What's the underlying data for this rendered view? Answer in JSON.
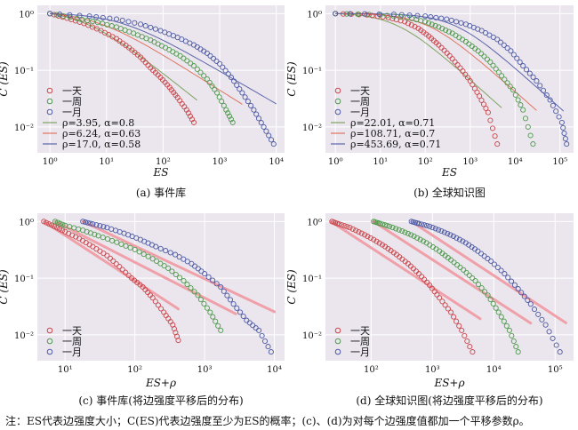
{
  "figure_note": "注：ES代表边强度大小；C(ES)代表边强度至少为ES的概率；(c)、(d)为对每个边强度值都加一个平移参数ρ。",
  "colors": {
    "day": "#c9474b",
    "week": "#4f9a4c",
    "month": "#4c5aa4",
    "fit_day": "#7da460",
    "fit_week": "#e0735f",
    "fit_month": "#5a65a8",
    "shift_line": "#f0a0a8",
    "panel_bg": "#ebe6ee"
  },
  "chart_data": [
    {
      "id": "a",
      "type": "scatter",
      "caption": "(a) 事件库",
      "xlabel": "ES",
      "ylabel": "C (ES)",
      "xscale": "log",
      "yscale": "log",
      "xlim": [
        0.6,
        14000
      ],
      "ylim": [
        0.0035,
        1.4
      ],
      "xticks": [
        1,
        10,
        100,
        1000,
        10000
      ],
      "xtick_labels": [
        "10⁰",
        "10¹",
        "10²",
        "10³",
        "10⁴"
      ],
      "yticks": [
        0.01,
        0.1,
        1
      ],
      "ytick_labels": [
        "10⁻²",
        "10⁻¹",
        "10⁰"
      ],
      "legend_position": "lower-left",
      "series": [
        {
          "name": "一天",
          "color_key": "day",
          "points": [
            [
              1,
              1
            ],
            [
              2,
              0.83
            ],
            [
              4,
              0.67
            ],
            [
              8,
              0.5
            ],
            [
              15,
              0.36
            ],
            [
              25,
              0.25
            ],
            [
              40,
              0.17
            ],
            [
              60,
              0.11
            ],
            [
              90,
              0.075
            ],
            [
              130,
              0.05
            ],
            [
              180,
              0.033
            ],
            [
              260,
              0.02
            ],
            [
              350,
              0.012
            ]
          ]
        },
        {
          "name": "一周",
          "color_key": "week",
          "points": [
            [
              1,
              1
            ],
            [
              3,
              0.82
            ],
            [
              7,
              0.7
            ],
            [
              15,
              0.58
            ],
            [
              30,
              0.45
            ],
            [
              60,
              0.34
            ],
            [
              110,
              0.25
            ],
            [
              200,
              0.18
            ],
            [
              350,
              0.12
            ],
            [
              600,
              0.07
            ],
            [
              900,
              0.04
            ],
            [
              1300,
              0.02
            ],
            [
              1700,
              0.012
            ]
          ]
        },
        {
          "name": "一月",
          "color_key": "month",
          "points": [
            [
              1,
              1
            ],
            [
              5,
              0.9
            ],
            [
              15,
              0.8
            ],
            [
              40,
              0.65
            ],
            [
              90,
              0.5
            ],
            [
              180,
              0.38
            ],
            [
              350,
              0.28
            ],
            [
              600,
              0.2
            ],
            [
              1000,
              0.13
            ],
            [
              1600,
              0.075
            ],
            [
              2500,
              0.04
            ],
            [
              4000,
              0.02
            ],
            [
              6000,
              0.01
            ],
            [
              9000,
              0.005
            ]
          ]
        }
      ],
      "fits": [
        {
          "name": "ρ=3.95, α=0.8",
          "color_key": "fit_day",
          "rho": 3.95,
          "alpha": 0.8,
          "x_end": 400
        },
        {
          "name": "ρ=6.24, α=0.63",
          "color_key": "fit_week",
          "rho": 6.24,
          "alpha": 0.63,
          "x_end": 2500
        },
        {
          "name": "ρ=17.0, α=0.58",
          "color_key": "fit_month",
          "rho": 17.0,
          "alpha": 0.58,
          "x_end": 10000
        }
      ]
    },
    {
      "id": "b",
      "type": "scatter",
      "caption": "(b) 全球知识图",
      "xlabel": "ES",
      "ylabel": "C (ES)",
      "xscale": "log",
      "yscale": "log",
      "xlim": [
        0.6,
        200000
      ],
      "ylim": [
        0.0035,
        1.4
      ],
      "xticks": [
        1,
        10,
        100,
        1000,
        10000,
        100000
      ],
      "xtick_labels": [
        "10⁰",
        "10¹",
        "10²",
        "10³",
        "10⁴",
        "10⁵"
      ],
      "yticks": [
        0.01,
        0.1,
        1
      ],
      "ytick_labels": [
        "10⁻²",
        "10⁻¹",
        "10⁰"
      ],
      "legend_position": "lower-left",
      "series": [
        {
          "name": "一天",
          "color_key": "day",
          "points": [
            [
              1,
              1
            ],
            [
              5,
              0.95
            ],
            [
              15,
              0.85
            ],
            [
              35,
              0.72
            ],
            [
              70,
              0.55
            ],
            [
              120,
              0.4
            ],
            [
              200,
              0.28
            ],
            [
              350,
              0.18
            ],
            [
              600,
              0.11
            ],
            [
              1000,
              0.065
            ],
            [
              1600,
              0.035
            ],
            [
              2500,
              0.018
            ],
            [
              4000,
              0.005
            ]
          ]
        },
        {
          "name": "一周",
          "color_key": "week",
          "points": [
            [
              1,
              1
            ],
            [
              10,
              0.95
            ],
            [
              40,
              0.85
            ],
            [
              100,
              0.72
            ],
            [
              200,
              0.58
            ],
            [
              400,
              0.45
            ],
            [
              800,
              0.32
            ],
            [
              1500,
              0.22
            ],
            [
              2800,
              0.14
            ],
            [
              5000,
              0.08
            ],
            [
              9000,
              0.045
            ],
            [
              15000,
              0.02
            ],
            [
              25000,
              0.005
            ]
          ]
        },
        {
          "name": "一月",
          "color_key": "month",
          "points": [
            [
              1,
              1
            ],
            [
              20,
              0.97
            ],
            [
              100,
              0.9
            ],
            [
              300,
              0.8
            ],
            [
              800,
              0.65
            ],
            [
              1800,
              0.5
            ],
            [
              4000,
              0.35
            ],
            [
              8000,
              0.22
            ],
            [
              15000,
              0.12
            ],
            [
              30000,
              0.065
            ],
            [
              60000,
              0.03
            ],
            [
              110000,
              0.012
            ],
            [
              140000,
              0.005
            ]
          ]
        }
      ],
      "fits": [
        {
          "name": "ρ=22.01, α=0.71",
          "color_key": "fit_day",
          "rho": 22.01,
          "alpha": 0.71,
          "x_end": 5000
        },
        {
          "name": "ρ=108.71, α=0.7",
          "color_key": "fit_week",
          "rho": 108.71,
          "alpha": 0.7,
          "x_end": 30000
        },
        {
          "name": "ρ=453.69, α=0.71",
          "color_key": "fit_month",
          "rho": 453.69,
          "alpha": 0.71,
          "x_end": 120000
        }
      ]
    },
    {
      "id": "c",
      "type": "scatter",
      "caption": "(c) 事件库(将边强度平移后的分布)",
      "xlabel": "ES+ρ",
      "ylabel": "C (ES)",
      "xscale": "log",
      "yscale": "log",
      "xlim": [
        4,
        14000
      ],
      "ylim": [
        0.0035,
        1.4
      ],
      "xticks": [
        10,
        100,
        1000,
        10000
      ],
      "xtick_labels": [
        "10¹",
        "10²",
        "10³",
        "10⁴"
      ],
      "yticks": [
        0.01,
        0.1,
        1
      ],
      "ytick_labels": [
        "10⁻²",
        "10⁻¹",
        "10⁰"
      ],
      "legend_position": "lower-left",
      "series": [
        {
          "name": "一天",
          "color_key": "day",
          "points": [
            [
              4.95,
              1
            ],
            [
              7,
              0.82
            ],
            [
              10,
              0.66
            ],
            [
              16,
              0.5
            ],
            [
              25,
              0.36
            ],
            [
              40,
              0.25
            ],
            [
              60,
              0.16
            ],
            [
              90,
              0.1
            ],
            [
              130,
              0.07
            ],
            [
              180,
              0.045
            ],
            [
              260,
              0.025
            ],
            [
              350,
              0.015
            ],
            [
              420,
              0.008
            ]
          ]
        },
        {
          "name": "一周",
          "color_key": "week",
          "points": [
            [
              7.2,
              1
            ],
            [
              10,
              0.85
            ],
            [
              18,
              0.7
            ],
            [
              30,
              0.56
            ],
            [
              55,
              0.43
            ],
            [
              100,
              0.32
            ],
            [
              180,
              0.22
            ],
            [
              300,
              0.15
            ],
            [
              500,
              0.09
            ],
            [
              800,
              0.05
            ],
            [
              1200,
              0.025
            ],
            [
              1700,
              0.012
            ]
          ]
        },
        {
          "name": "一月",
          "color_key": "month",
          "points": [
            [
              18,
              1
            ],
            [
              25,
              0.9
            ],
            [
              40,
              0.78
            ],
            [
              70,
              0.62
            ],
            [
              120,
              0.48
            ],
            [
              200,
              0.36
            ],
            [
              380,
              0.26
            ],
            [
              650,
              0.18
            ],
            [
              1000,
              0.12
            ],
            [
              1700,
              0.07
            ],
            [
              2600,
              0.035
            ],
            [
              4000,
              0.018
            ],
            [
              6000,
              0.012
            ],
            [
              9000,
              0.005
            ]
          ]
        }
      ],
      "shift_lines": [
        {
          "x_start": 5,
          "x_end": 420,
          "rho": 3.95,
          "alpha": 0.8
        },
        {
          "x_start": 7.2,
          "x_end": 2800,
          "rho": 6.24,
          "alpha": 0.63
        },
        {
          "x_start": 18,
          "x_end": 10000,
          "rho": 17.0,
          "alpha": 0.58
        }
      ]
    },
    {
      "id": "d",
      "type": "scatter",
      "caption": "(d) 全球知识图(将边强度平移后的分布)",
      "xlabel": "ES+ρ",
      "ylabel": "C (ES)",
      "xscale": "log",
      "yscale": "log",
      "xlim": [
        18,
        200000
      ],
      "ylim": [
        0.0035,
        1.4
      ],
      "xticks": [
        100,
        1000,
        10000,
        100000
      ],
      "xtick_labels": [
        "10²",
        "10³",
        "10⁴",
        "10⁵"
      ],
      "yticks": [
        0.01,
        0.1,
        1
      ],
      "ytick_labels": [
        "10⁻²",
        "10⁻¹",
        "10⁰"
      ],
      "legend_position": "lower-left",
      "series": [
        {
          "name": "一天",
          "color_key": "day",
          "points": [
            [
              23,
              1
            ],
            [
              30,
              0.9
            ],
            [
              45,
              0.78
            ],
            [
              70,
              0.62
            ],
            [
              110,
              0.48
            ],
            [
              170,
              0.36
            ],
            [
              260,
              0.26
            ],
            [
              400,
              0.18
            ],
            [
              600,
              0.12
            ],
            [
              900,
              0.075
            ],
            [
              1300,
              0.045
            ],
            [
              2000,
              0.025
            ],
            [
              3000,
              0.012
            ],
            [
              4500,
              0.005
            ]
          ]
        },
        {
          "name": "一周",
          "color_key": "week",
          "points": [
            [
              110,
              1
            ],
            [
              140,
              0.92
            ],
            [
              200,
              0.82
            ],
            [
              320,
              0.68
            ],
            [
              500,
              0.55
            ],
            [
              800,
              0.42
            ],
            [
              1300,
              0.3
            ],
            [
              2000,
              0.21
            ],
            [
              3200,
              0.14
            ],
            [
              5000,
              0.09
            ],
            [
              8000,
              0.05
            ],
            [
              12000,
              0.025
            ],
            [
              18000,
              0.012
            ],
            [
              25000,
              0.005
            ]
          ]
        },
        {
          "name": "一月",
          "color_key": "month",
          "points": [
            [
              455,
              1
            ],
            [
              600,
              0.92
            ],
            [
              900,
              0.82
            ],
            [
              1400,
              0.68
            ],
            [
              2200,
              0.55
            ],
            [
              3500,
              0.42
            ],
            [
              5500,
              0.3
            ],
            [
              9000,
              0.2
            ],
            [
              15000,
              0.12
            ],
            [
              25000,
              0.065
            ],
            [
              40000,
              0.035
            ],
            [
              70000,
              0.015
            ],
            [
              120000,
              0.005
            ]
          ]
        }
      ],
      "shift_lines": [
        {
          "x_start": 22,
          "x_end": 6000,
          "rho": 22.01,
          "alpha": 0.71
        },
        {
          "x_start": 109,
          "x_end": 40000,
          "rho": 108.71,
          "alpha": 0.7
        },
        {
          "x_start": 455,
          "x_end": 150000,
          "rho": 453.69,
          "alpha": 0.71
        }
      ]
    }
  ]
}
